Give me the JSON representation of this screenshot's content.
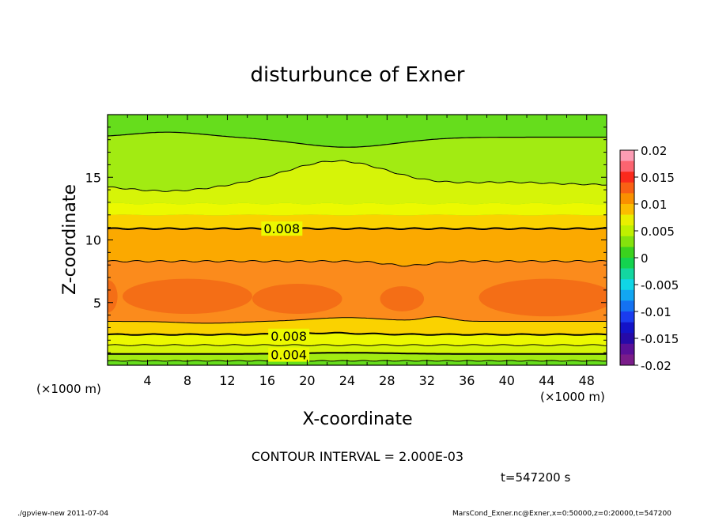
{
  "chart_data": {
    "type": "heatmap",
    "title": "disturbunce of Exner",
    "xlabel": "X-coordinate",
    "ylabel": "Z-coordinate",
    "x_unit": "(×1000 m)",
    "y_unit": "(×1000 m)",
    "xlim": [
      0,
      50
    ],
    "ylim": [
      0,
      20
    ],
    "x_ticks": [
      "4",
      "8",
      "12",
      "16",
      "20",
      "24",
      "28",
      "32",
      "36",
      "40",
      "44",
      "48"
    ],
    "y_ticks": [
      "5",
      "10",
      "15"
    ],
    "colorbar": {
      "ticks": [
        "0.02",
        "0.015",
        "0.01",
        "0.005",
        "0",
        "-0.005",
        "-0.01",
        "-0.015",
        "-0.02"
      ],
      "min": -0.02,
      "max": 0.02
    },
    "contour_labels": [
      {
        "text": "0.008",
        "x": 17.3,
        "z": 10.9
      },
      {
        "text": "0.008",
        "x": 18.0,
        "z": 2.35
      },
      {
        "text": "0.004",
        "x": 18.0,
        "z": 0.85
      }
    ],
    "contour_interval_text": "CONTOUR INTERVAL = 2.000E-03",
    "time_text": "t=547200 s"
  },
  "footer": {
    "left": "./gpview-new  2011-07-04",
    "right": "MarsCond_Exner.nc@Exner,x=0:50000,z=0:20000,t=547200"
  },
  "colors": {
    "green": "#66dd1c",
    "light_green": "#a2eb12",
    "yellow_green": "#d6f408",
    "yellow": "#ecf900",
    "light_orange": "#fad200",
    "orange": "#fba900",
    "dark_orange": "#fb8b1c",
    "deep_orange": "#f46e16"
  }
}
